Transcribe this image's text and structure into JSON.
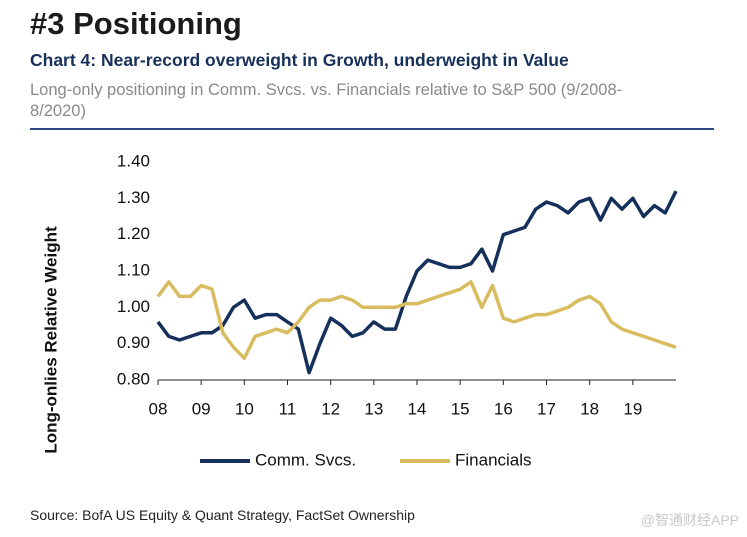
{
  "header": "#3 Positioning",
  "chart_data": {
    "type": "line",
    "title": "Chart 4: Near-record overweight in Growth, underweight in Value",
    "subtitle": "Long-only positioning in Comm. Svcs. vs. Financials relative to S&P 500 (9/2008-8/2020)",
    "y_label": "Long-onlies Relative Weight",
    "source": "Source: BofA US Equity & Quant Strategy, FactSet Ownership",
    "x": [
      2008,
      2008.25,
      2008.5,
      2008.75,
      2009,
      2009.25,
      2009.5,
      2009.75,
      2010,
      2010.25,
      2010.5,
      2010.75,
      2011,
      2011.25,
      2011.5,
      2011.75,
      2012,
      2012.25,
      2012.5,
      2012.75,
      2013,
      2013.25,
      2013.5,
      2013.75,
      2014,
      2014.25,
      2014.5,
      2014.75,
      2015,
      2015.25,
      2015.5,
      2015.75,
      2016,
      2016.25,
      2016.5,
      2016.75,
      2017,
      2017.25,
      2017.5,
      2017.75,
      2018,
      2018.25,
      2018.5,
      2018.75,
      2019,
      2019.25,
      2019.5,
      2019.75,
      2020
    ],
    "series": [
      {
        "name": "Comm. Svcs.",
        "color": "#15305a",
        "values": [
          0.96,
          0.92,
          0.91,
          0.92,
          0.93,
          0.93,
          0.95,
          1.0,
          1.02,
          0.97,
          0.98,
          0.98,
          0.96,
          0.94,
          0.82,
          0.9,
          0.97,
          0.95,
          0.92,
          0.93,
          0.96,
          0.94,
          0.94,
          1.03,
          1.1,
          1.13,
          1.12,
          1.11,
          1.11,
          1.12,
          1.16,
          1.1,
          1.2,
          1.21,
          1.22,
          1.27,
          1.29,
          1.28,
          1.26,
          1.29,
          1.3,
          1.24,
          1.3,
          1.27,
          1.3,
          1.25,
          1.28,
          1.26,
          1.32
        ]
      },
      {
        "name": "Financials",
        "color": "#d9bc5f",
        "values": [
          1.03,
          1.07,
          1.03,
          1.03,
          1.06,
          1.05,
          0.93,
          0.89,
          0.86,
          0.92,
          0.93,
          0.94,
          0.93,
          0.96,
          1.0,
          1.02,
          1.02,
          1.03,
          1.02,
          1.0,
          1.0,
          1.0,
          1.0,
          1.01,
          1.01,
          1.02,
          1.03,
          1.04,
          1.05,
          1.07,
          1.0,
          1.06,
          0.97,
          0.96,
          0.97,
          0.98,
          0.98,
          0.99,
          1.0,
          1.02,
          1.03,
          1.01,
          0.96,
          0.94,
          0.93,
          0.92,
          0.91,
          0.9,
          0.89
        ]
      }
    ],
    "xlim": [
      2008,
      2020
    ],
    "xticks": [
      {
        "value": 2008,
        "label": "08"
      },
      {
        "value": 2009,
        "label": "09"
      },
      {
        "value": 2010,
        "label": "10"
      },
      {
        "value": 2011,
        "label": "11"
      },
      {
        "value": 2012,
        "label": "12"
      },
      {
        "value": 2013,
        "label": "13"
      },
      {
        "value": 2014,
        "label": "14"
      },
      {
        "value": 2015,
        "label": "15"
      },
      {
        "value": 2016,
        "label": "16"
      },
      {
        "value": 2017,
        "label": "17"
      },
      {
        "value": 2018,
        "label": "18"
      },
      {
        "value": 2019,
        "label": "19"
      }
    ],
    "ylim": [
      0.8,
      1.4
    ],
    "yticks": [
      {
        "value": 0.8,
        "label": "0.80"
      },
      {
        "value": 0.9,
        "label": "0.90"
      },
      {
        "value": 1.0,
        "label": "1.00"
      },
      {
        "value": 1.1,
        "label": "1.10"
      },
      {
        "value": 1.2,
        "label": "1.20"
      },
      {
        "value": 1.3,
        "label": "1.30"
      },
      {
        "value": 1.4,
        "label": "1.40"
      }
    ],
    "grid": false,
    "legend": "bottom"
  },
  "watermark": "@智通财经APP"
}
